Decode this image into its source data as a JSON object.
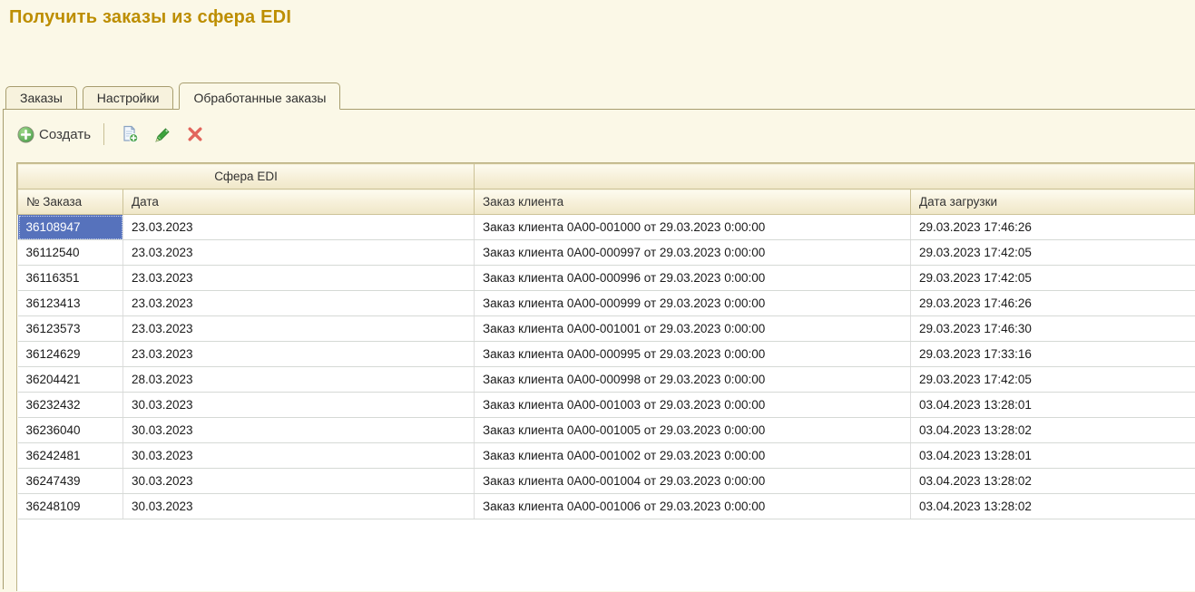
{
  "page": {
    "title": "Получить заказы из сфера EDI"
  },
  "tabs": [
    {
      "label": "Заказы",
      "active": false
    },
    {
      "label": "Настройки",
      "active": false
    },
    {
      "label": "Обработанные заказы",
      "active": true
    }
  ],
  "toolbar": {
    "create_label": "Создать",
    "icons": [
      {
        "name": "add-circle-icon",
        "meaning": "create new item",
        "color": "#5cb85c"
      },
      {
        "name": "copy-document-icon",
        "meaning": "create by copying",
        "color": "#7a93b8"
      },
      {
        "name": "pencil-icon",
        "meaning": "edit item",
        "color": "#3da33d"
      },
      {
        "name": "delete-x-icon",
        "meaning": "delete item",
        "color": "#e2655c"
      }
    ]
  },
  "table": {
    "group_header": "Сфера EDI",
    "columns": [
      "№ Заказа",
      "Дата",
      "Заказ клиента",
      "Дата загрузки"
    ],
    "selected_row_index": 0,
    "rows": [
      {
        "order_no": "36108947",
        "date": "23.03.2023",
        "client_order": "Заказ клиента 0A00-001000 от 29.03.2023 0:00:00",
        "load_date": "29.03.2023 17:46:26"
      },
      {
        "order_no": "36112540",
        "date": "23.03.2023",
        "client_order": "Заказ клиента 0A00-000997 от 29.03.2023 0:00:00",
        "load_date": "29.03.2023 17:42:05"
      },
      {
        "order_no": "36116351",
        "date": "23.03.2023",
        "client_order": "Заказ клиента 0A00-000996 от 29.03.2023 0:00:00",
        "load_date": "29.03.2023 17:42:05"
      },
      {
        "order_no": "36123413",
        "date": "23.03.2023",
        "client_order": "Заказ клиента 0A00-000999 от 29.03.2023 0:00:00",
        "load_date": "29.03.2023 17:46:26"
      },
      {
        "order_no": "36123573",
        "date": "23.03.2023",
        "client_order": "Заказ клиента 0A00-001001 от 29.03.2023 0:00:00",
        "load_date": "29.03.2023 17:46:30"
      },
      {
        "order_no": "36124629",
        "date": "23.03.2023",
        "client_order": "Заказ клиента 0A00-000995 от 29.03.2023 0:00:00",
        "load_date": "29.03.2023 17:33:16"
      },
      {
        "order_no": "36204421",
        "date": "28.03.2023",
        "client_order": "Заказ клиента 0A00-000998 от 29.03.2023 0:00:00",
        "load_date": "29.03.2023 17:42:05"
      },
      {
        "order_no": "36232432",
        "date": "30.03.2023",
        "client_order": "Заказ клиента 0A00-001003 от 29.03.2023 0:00:00",
        "load_date": "03.04.2023 13:28:01"
      },
      {
        "order_no": "36236040",
        "date": "30.03.2023",
        "client_order": "Заказ клиента 0A00-001005 от 29.03.2023 0:00:00",
        "load_date": "03.04.2023 13:28:02"
      },
      {
        "order_no": "36242481",
        "date": "30.03.2023",
        "client_order": "Заказ клиента 0A00-001002 от 29.03.2023 0:00:00",
        "load_date": "03.04.2023 13:28:01"
      },
      {
        "order_no": "36247439",
        "date": "30.03.2023",
        "client_order": "Заказ клиента 0A00-001004 от 29.03.2023 0:00:00",
        "load_date": "03.04.2023 13:28:02"
      },
      {
        "order_no": "36248109",
        "date": "30.03.2023",
        "client_order": "Заказ клиента 0A00-001006 от 29.03.2023 0:00:00",
        "load_date": "03.04.2023 13:28:02"
      }
    ]
  },
  "colors": {
    "page_background": "#fbf8e7",
    "title_text": "#bd8e00",
    "tab_border": "#a79d6e",
    "header_border": "#ccc297",
    "selected_row_bg": "#c9e1fa",
    "focused_cell_bg": "#5672bc",
    "alt_row_bg": "#f3f9f2"
  }
}
